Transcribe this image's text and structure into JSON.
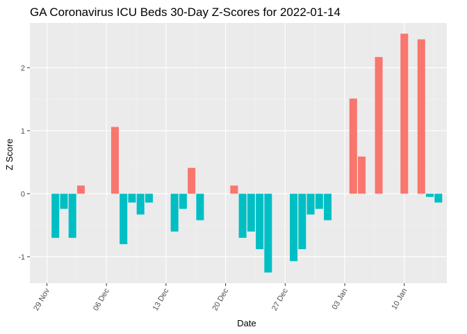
{
  "chart_data": {
    "type": "bar",
    "title": "GA Coronavirus ICU Beds 30-Day Z-Scores for 2022-01-14",
    "xlabel": "Date",
    "ylabel": "Z Score",
    "ylim": [
      -1.42,
      2.71
    ],
    "yticks": [
      -1,
      0,
      1,
      2
    ],
    "xticks": [
      {
        "date": "2021-11-29",
        "label": "29 Nov"
      },
      {
        "date": "2021-12-06",
        "label": "06 Dec"
      },
      {
        "date": "2021-12-13",
        "label": "13 Dec"
      },
      {
        "date": "2021-12-20",
        "label": "20 Dec"
      },
      {
        "date": "2021-12-27",
        "label": "27 Dec"
      },
      {
        "date": "2022-01-03",
        "label": "03 Jan"
      },
      {
        "date": "2022-01-10",
        "label": "10 Jan"
      }
    ],
    "xrange": [
      "2021-11-27",
      "2022-01-15"
    ],
    "grid": true,
    "legend": "none",
    "colors": {
      "positive": "#F8766D",
      "negative": "#00BFC4",
      "panel": "#EBEBEB",
      "grid_major": "#FFFFFF",
      "grid_minor": "#F4F4F4"
    },
    "series": [
      {
        "x": [
          "2021-11-30",
          "2021-12-01",
          "2021-12-02",
          "2021-12-03",
          "2021-12-07",
          "2021-12-08",
          "2021-12-09",
          "2021-12-10",
          "2021-12-11",
          "2021-12-14",
          "2021-12-15",
          "2021-12-16",
          "2021-12-17",
          "2021-12-21",
          "2021-12-22",
          "2021-12-23",
          "2021-12-24",
          "2021-12-25",
          "2021-12-28",
          "2021-12-29",
          "2021-12-30",
          "2021-12-31",
          "2022-01-01",
          "2022-01-04",
          "2022-01-05",
          "2022-01-07",
          "2022-01-10",
          "2022-01-12",
          "2022-01-13",
          "2022-01-14"
        ],
        "values": [
          -0.7,
          -0.24,
          -0.7,
          0.13,
          1.06,
          -0.8,
          -0.14,
          -0.33,
          -0.14,
          -0.6,
          -0.24,
          0.41,
          -0.42,
          0.13,
          -0.7,
          -0.6,
          -0.88,
          -1.25,
          -1.07,
          -0.88,
          -0.33,
          -0.24,
          -0.42,
          1.51,
          0.59,
          2.17,
          2.54,
          2.45,
          -0.05,
          -0.14
        ]
      }
    ]
  }
}
